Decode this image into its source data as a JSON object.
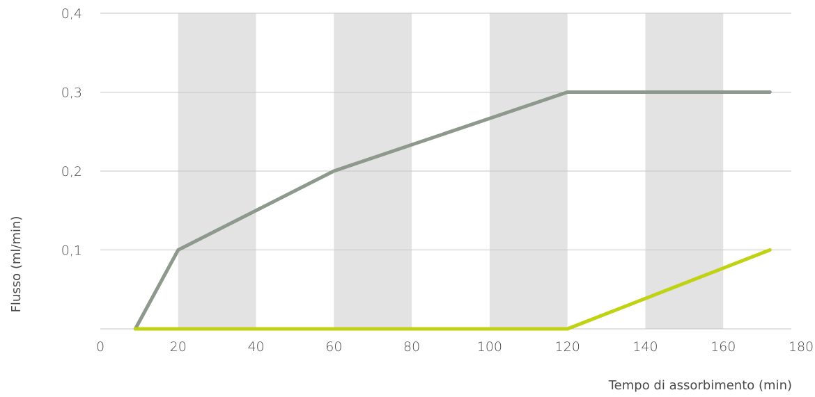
{
  "chart_data": {
    "type": "line",
    "xlabel": "Tempo di assorbimento (min)",
    "ylabel": "Flusso (ml/min)",
    "xlim": [
      0,
      180
    ],
    "ylim": [
      0,
      0.4
    ],
    "x_ticks": [
      {
        "value": 0,
        "label": "0"
      },
      {
        "value": 20,
        "label": "20"
      },
      {
        "value": 40,
        "label": "40"
      },
      {
        "value": 60,
        "label": "60"
      },
      {
        "value": 80,
        "label": "80"
      },
      {
        "value": 100,
        "label": "100"
      },
      {
        "value": 120,
        "label": "120"
      },
      {
        "value": 140,
        "label": "140"
      },
      {
        "value": 160,
        "label": "160"
      },
      {
        "value": 180,
        "label": "180"
      }
    ],
    "y_ticks": [
      {
        "value": 0.1,
        "label": "0,1"
      },
      {
        "value": 0.2,
        "label": "0,2"
      },
      {
        "value": 0.3,
        "label": "0,3"
      },
      {
        "value": 0.4,
        "label": "0,4"
      }
    ],
    "shaded_bands": [
      [
        20,
        40
      ],
      [
        60,
        80
      ],
      [
        100,
        120
      ],
      [
        140,
        160
      ]
    ],
    "grid": true,
    "series": [
      {
        "color": "#8e998d",
        "points": [
          [
            9,
            0
          ],
          [
            20,
            0.1
          ],
          [
            60,
            0.2
          ],
          [
            120,
            0.3
          ],
          [
            172,
            0.3
          ]
        ]
      },
      {
        "color": "#bfd214",
        "points": [
          [
            9,
            0
          ],
          [
            120,
            0
          ],
          [
            172,
            0.1
          ]
        ]
      }
    ]
  }
}
